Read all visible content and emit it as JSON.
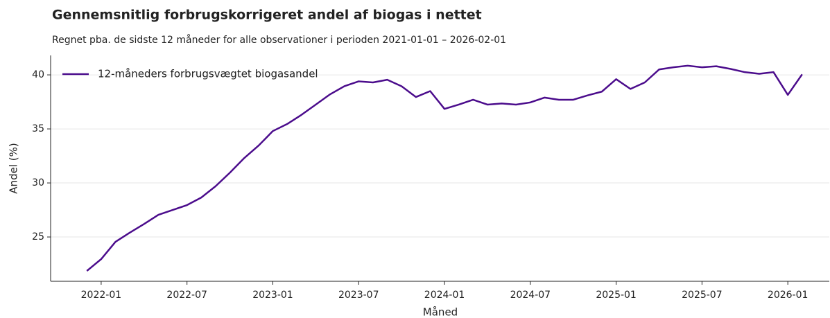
{
  "chart_data": {
    "type": "line",
    "title": "Gennemsnitlig forbrugskorrigeret andel af biogas i nettet",
    "subtitle": "Regnet pba. de sidste 12 måneder for alle observationer i perioden 2021-01-01 – 2026-02-01",
    "x_label": "Måned",
    "y_label": "Andel (%)",
    "x": [
      "2021-12",
      "2022-01",
      "2022-02",
      "2022-03",
      "2022-04",
      "2022-05",
      "2022-06",
      "2022-07",
      "2022-08",
      "2022-09",
      "2022-10",
      "2022-11",
      "2022-12",
      "2023-01",
      "2023-02",
      "2023-03",
      "2023-04",
      "2023-05",
      "2023-06",
      "2023-07",
      "2023-08",
      "2023-09",
      "2023-10",
      "2023-11",
      "2023-12",
      "2024-01",
      "2024-02",
      "2024-03",
      "2024-04",
      "2024-05",
      "2024-06",
      "2024-07",
      "2024-08",
      "2024-09",
      "2024-10",
      "2024-11",
      "2024-12",
      "2025-01",
      "2025-02",
      "2025-03",
      "2025-04",
      "2025-05",
      "2025-06",
      "2025-07",
      "2025-08",
      "2025-09",
      "2025-10",
      "2025-11",
      "2025-12",
      "2026-01",
      "2026-02"
    ],
    "series": [
      {
        "name": "12-måneders forbrugsvægtet biogasandel",
        "color": "#4b0c8c",
        "values": [
          21.86,
          22.95,
          24.55,
          25.4,
          26.2,
          27.05,
          27.5,
          27.95,
          28.65,
          29.7,
          30.95,
          32.3,
          33.45,
          34.8,
          35.45,
          36.3,
          37.25,
          38.2,
          38.95,
          39.4,
          39.3,
          39.55,
          38.95,
          37.95,
          38.5,
          36.85,
          37.25,
          37.7,
          37.25,
          37.35,
          37.25,
          37.45,
          37.9,
          37.7,
          37.7,
          38.1,
          38.45,
          39.6,
          38.7,
          39.3,
          40.5,
          40.7,
          40.85,
          40.7,
          40.8,
          40.55,
          40.25,
          40.1,
          40.25,
          38.15,
          40.05
        ]
      }
    ],
    "xlim": [
      "2021-09-15",
      "2026-03-28"
    ],
    "xticks": [
      "2022-01",
      "2022-07",
      "2023-01",
      "2023-07",
      "2024-01",
      "2024-07",
      "2025-01",
      "2025-07",
      "2026-01"
    ],
    "ylim": [
      20.9,
      41.8
    ],
    "yticks": [
      25,
      30,
      35,
      40
    ],
    "grid": true,
    "legend": "upper left"
  }
}
